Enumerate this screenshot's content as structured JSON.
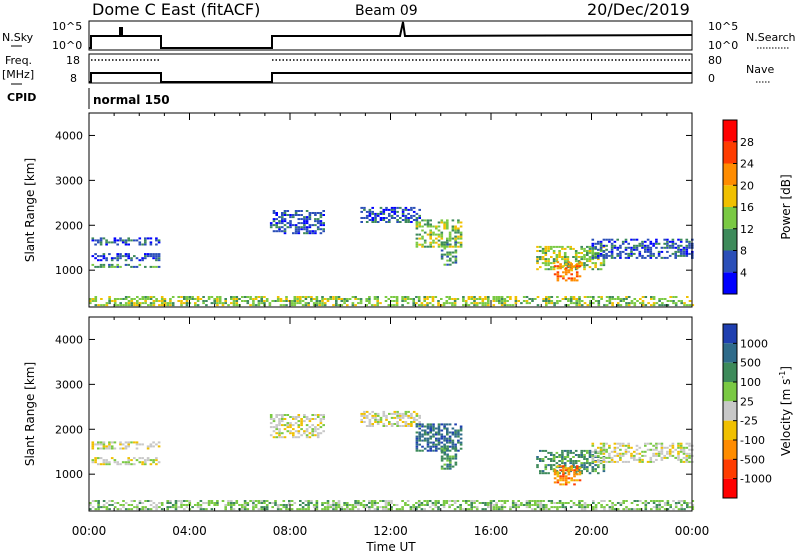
{
  "header": {
    "site": "Dome C East (fitACF)",
    "beam": "Beam 09",
    "date": "20/Dec/2019"
  },
  "sky_panel": {
    "left_label": "N.Sky",
    "left_tick_hi": "10^5",
    "left_tick_lo": "10^0",
    "right_label": "N.Search",
    "right_tick_hi": "10^5",
    "right_tick_lo": "10^0"
  },
  "freq_panel": {
    "left_label_1": "Freq.",
    "left_label_2": "[MHz]",
    "left_tick_hi": "18",
    "left_tick_lo": "8",
    "right_label": "Nave",
    "right_tick_hi": "80",
    "right_tick_lo": "0"
  },
  "cpid": {
    "label": "CPID",
    "value": "normal 150"
  },
  "colors": {
    "scatter_blue": "#1f3fb0",
    "scatter_green": "#3d8a5a",
    "ground_gray": "#c0c0c0"
  },
  "chart_data": [
    {
      "type": "heatmap",
      "name": "power",
      "ylabel": "Slant Range [km]",
      "xlabel": "",
      "x_ticks": [
        "00:00",
        "04:00",
        "08:00",
        "12:00",
        "16:00",
        "20:00",
        "00:00"
      ],
      "y_ticks": [
        "1000",
        "2000",
        "3000",
        "4000"
      ],
      "xlim_hours": [
        0,
        24
      ],
      "ylim_km": [
        180,
        4500
      ],
      "colorbar": {
        "label": "Power [dB]",
        "ticks": [
          "4",
          "8",
          "12",
          "16",
          "20",
          "24",
          "28"
        ],
        "colors": [
          "#0000ff",
          "#2b4fb8",
          "#3d8a5a",
          "#7ac943",
          "#f0c000",
          "#ff8c00",
          "#ff3c00",
          "#ff0000"
        ]
      },
      "regions": [
        {
          "x0": 0.1,
          "x1": 2.8,
          "y0": 1550,
          "y1": 1700,
          "level": 1
        },
        {
          "x0": 0.1,
          "x1": 2.8,
          "y0": 1200,
          "y1": 1380,
          "level": 1
        },
        {
          "x0": 0.1,
          "x1": 2.8,
          "y0": 1050,
          "y1": 1130,
          "level": 2
        },
        {
          "x0": 7.2,
          "x1": 9.3,
          "y0": 1800,
          "y1": 2300,
          "level": 1
        },
        {
          "x0": 10.8,
          "x1": 13.2,
          "y0": 2050,
          "y1": 2400,
          "level": 1
        },
        {
          "x0": 13.0,
          "x1": 14.8,
          "y0": 1500,
          "y1": 2100,
          "level": 3
        },
        {
          "x0": 14.0,
          "x1": 14.6,
          "y0": 1100,
          "y1": 1600,
          "level": 2
        },
        {
          "x0": 17.8,
          "x1": 20.5,
          "y0": 1000,
          "y1": 1500,
          "level": 3
        },
        {
          "x0": 18.5,
          "x1": 19.5,
          "y0": 750,
          "y1": 1200,
          "level": 5
        },
        {
          "x0": 20.0,
          "x1": 24.0,
          "y0": 1250,
          "y1": 1700,
          "level": 1
        },
        {
          "x0": 0.0,
          "x1": 24.0,
          "y0": 200,
          "y1": 420,
          "level": 3
        }
      ]
    },
    {
      "type": "heatmap",
      "name": "velocity",
      "ylabel": "Slant Range [km]",
      "xlabel": "Time UT",
      "x_ticks": [
        "00:00",
        "04:00",
        "08:00",
        "12:00",
        "16:00",
        "20:00",
        "00:00"
      ],
      "y_ticks": [
        "1000",
        "2000",
        "3000",
        "4000"
      ],
      "xlim_hours": [
        0,
        24
      ],
      "ylim_km": [
        180,
        4500
      ],
      "colorbar": {
        "label": "Velocity [m s^-1]",
        "ticks": [
          "1000",
          "500",
          "100",
          "25",
          "-25",
          "-100",
          "-500",
          "-1000"
        ],
        "colors": [
          "#1f3fb0",
          "#2f6b8a",
          "#3d8a5a",
          "#7ac943",
          "#c8c8c8",
          "#f0c000",
          "#ff8c00",
          "#ff3c00",
          "#ff0000"
        ]
      },
      "regions": [
        {
          "x0": 0.1,
          "x1": 2.8,
          "y0": 1550,
          "y1": 1700,
          "level": 4
        },
        {
          "x0": 0.1,
          "x1": 2.8,
          "y0": 1200,
          "y1": 1380,
          "level": 4
        },
        {
          "x0": 7.2,
          "x1": 9.3,
          "y0": 1800,
          "y1": 2300,
          "level": 4
        },
        {
          "x0": 10.8,
          "x1": 13.2,
          "y0": 2050,
          "y1": 2400,
          "level": 4
        },
        {
          "x0": 13.0,
          "x1": 14.8,
          "y0": 1500,
          "y1": 2100,
          "level": 1
        },
        {
          "x0": 14.0,
          "x1": 14.6,
          "y0": 1100,
          "y1": 1600,
          "level": 2
        },
        {
          "x0": 17.8,
          "x1": 20.5,
          "y0": 1000,
          "y1": 1500,
          "level": 2
        },
        {
          "x0": 18.5,
          "x1": 19.5,
          "y0": 750,
          "y1": 1200,
          "level": 6
        },
        {
          "x0": 20.0,
          "x1": 24.0,
          "y0": 1250,
          "y1": 1700,
          "level": 4
        },
        {
          "x0": 0.0,
          "x1": 24.0,
          "y0": 200,
          "y1": 420,
          "level": 3
        }
      ]
    }
  ]
}
